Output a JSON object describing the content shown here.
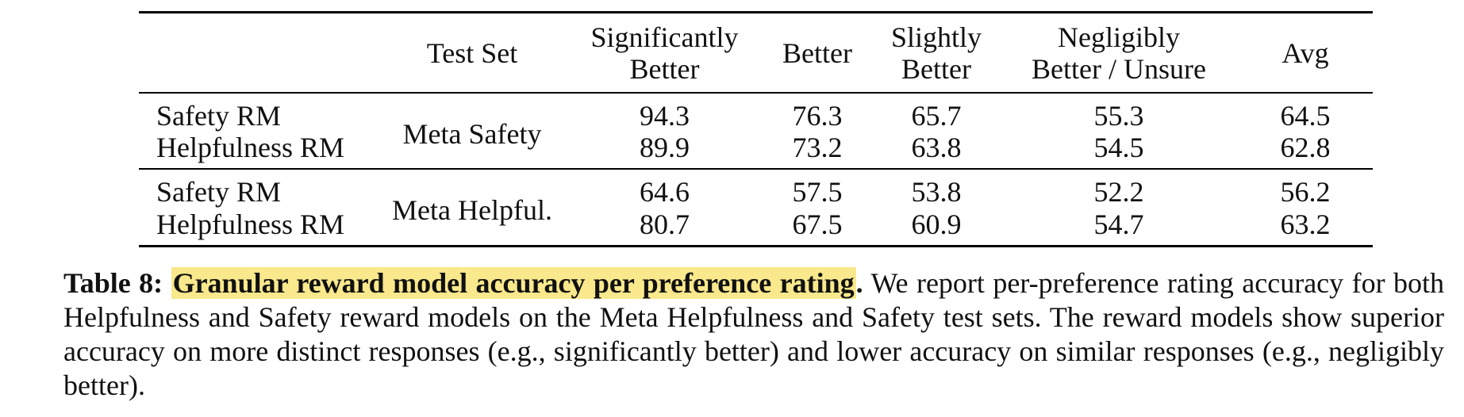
{
  "table": {
    "columns": {
      "model": "",
      "test_set": "Test Set",
      "significantly_better_line1": "Significantly",
      "significantly_better_line2": "Better",
      "better": "Better",
      "slightly_better_line1": "Slightly",
      "slightly_better_line2": "Better",
      "negligibly_line1": "Negligibly",
      "negligibly_line2": "Better / Unsure",
      "avg": "Avg"
    },
    "groups": [
      {
        "test_set": "Meta Safety",
        "rows": [
          {
            "model": "Safety RM",
            "significantly_better": "94.3",
            "better": "76.3",
            "slightly_better": "65.7",
            "negligibly_better": "55.3",
            "avg": "64.5"
          },
          {
            "model": "Helpfulness RM",
            "significantly_better": "89.9",
            "better": "73.2",
            "slightly_better": "63.8",
            "negligibly_better": "54.5",
            "avg": "62.8"
          }
        ]
      },
      {
        "test_set": "Meta Helpful.",
        "rows": [
          {
            "model": "Safety RM",
            "significantly_better": "64.6",
            "better": "57.5",
            "slightly_better": "53.8",
            "negligibly_better": "52.2",
            "avg": "56.2"
          },
          {
            "model": "Helpfulness RM",
            "significantly_better": "80.7",
            "better": "67.5",
            "slightly_better": "60.9",
            "negligibly_better": "54.7",
            "avg": "63.2"
          }
        ]
      }
    ]
  },
  "caption": {
    "label": "Table 8:",
    "headline": "Granular reward model accuracy per preference rating",
    "headline_end": ".",
    "body": " We report per-preference rating accuracy for both Helpfulness and Safety reward models on the Meta Helpfulness and Safety test sets. The reward models show superior accuracy on more distinct responses (e.g., significantly better) and lower accuracy on similar responses (e.g., negligibly better).",
    "highlight_color": "#f9e88c"
  }
}
